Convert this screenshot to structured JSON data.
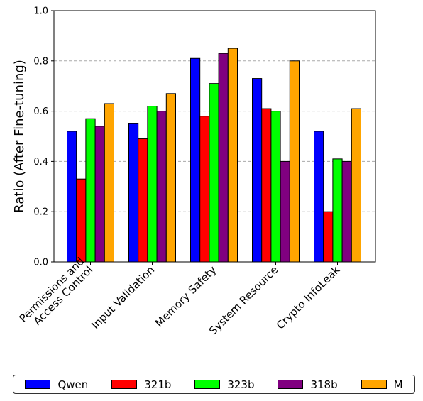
{
  "chart_data": {
    "type": "bar",
    "categories": [
      "Permissions and\nAccess Control",
      "Input Validation",
      "Memory Safety",
      "System Resource",
      "Crypto InfoLeak"
    ],
    "series": [
      {
        "name": "Qwen",
        "color": "#0000ff",
        "values": [
          0.52,
          0.55,
          0.81,
          0.73,
          0.52
        ]
      },
      {
        "name": "321b",
        "color": "#ff0000",
        "values": [
          0.33,
          0.49,
          0.58,
          0.61,
          0.2
        ]
      },
      {
        "name": "323b",
        "color": "#00ff00",
        "values": [
          0.57,
          0.62,
          0.71,
          0.6,
          0.41
        ]
      },
      {
        "name": "318b",
        "color": "#800080",
        "values": [
          0.54,
          0.6,
          0.83,
          0.4,
          0.4
        ]
      },
      {
        "name": "M",
        "color": "#ffa500",
        "values": [
          0.63,
          0.67,
          0.85,
          0.8,
          0.61
        ]
      }
    ],
    "ylabel": "Ratio (After Fine-tuning)",
    "ylim": [
      0,
      1.0
    ],
    "yticks": [
      "0.0",
      "0.2",
      "0.4",
      "0.6",
      "0.8",
      "1.0"
    ],
    "grid": "y dashed",
    "legend_position": "bottom"
  }
}
